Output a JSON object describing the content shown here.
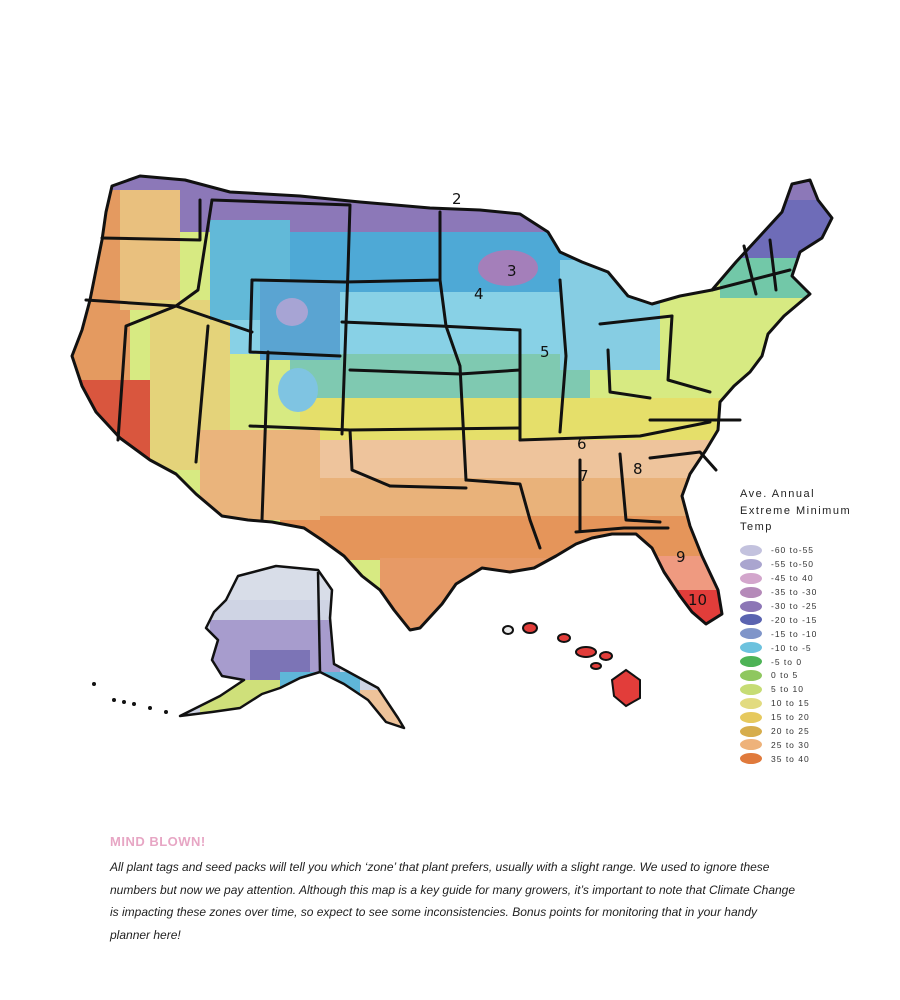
{
  "map": {
    "zone_labels": [
      {
        "id": "zone-2",
        "text": "2"
      },
      {
        "id": "zone-3",
        "text": "3"
      },
      {
        "id": "zone-4",
        "text": "4"
      },
      {
        "id": "zone-5",
        "text": "5"
      },
      {
        "id": "zone-6",
        "text": "6"
      },
      {
        "id": "zone-7",
        "text": "7"
      },
      {
        "id": "zone-8",
        "text": "8"
      },
      {
        "id": "zone-9",
        "text": "9"
      },
      {
        "id": "zone-10",
        "text": "10"
      }
    ]
  },
  "legend": {
    "title_line1": "Ave. Annual",
    "title_line2": "Extreme Minimum",
    "title_line3": "Temp",
    "items": [
      {
        "label": "-60 to-55",
        "color": "#c3c2de"
      },
      {
        "label": "-55 to-50",
        "color": "#aaa5cf"
      },
      {
        "label": "-45 to 40",
        "color": "#d3a6cc"
      },
      {
        "label": "-35 to -30",
        "color": "#b58ab9"
      },
      {
        "label": "-30 to -25",
        "color": "#8c76b6"
      },
      {
        "label": "-20 to -15",
        "color": "#5a63b0"
      },
      {
        "label": "-15 to -10",
        "color": "#7f95c9"
      },
      {
        "label": "-10 to -5",
        "color": "#6cc2de"
      },
      {
        "label": "-5 to 0",
        "color": "#4db356"
      },
      {
        "label": "0 to 5",
        "color": "#8fc75f"
      },
      {
        "label": "5 to 10",
        "color": "#c6dc74"
      },
      {
        "label": "10 to 15",
        "color": "#e2db80"
      },
      {
        "label": "15 to 20",
        "color": "#e6c95e"
      },
      {
        "label": "20 to 25",
        "color": "#d6ad4c"
      },
      {
        "label": "25 to 30",
        "color": "#eeb27a"
      },
      {
        "label": "35 to 40",
        "color": "#e07a3c"
      }
    ]
  },
  "caption": {
    "heading": "MIND BLOWN!",
    "body": "All plant tags and seed packs will tell you which ‘zone’ that plant prefers, usually with a slight range. We used to ignore these numbers but now we pay attention. Although this map is a key guide for many growers, it’s important to note that Climate Change is impacting these zones over time, so expect to see some inconsistencies. Bonus points for monitoring that in your handy planner here!"
  }
}
